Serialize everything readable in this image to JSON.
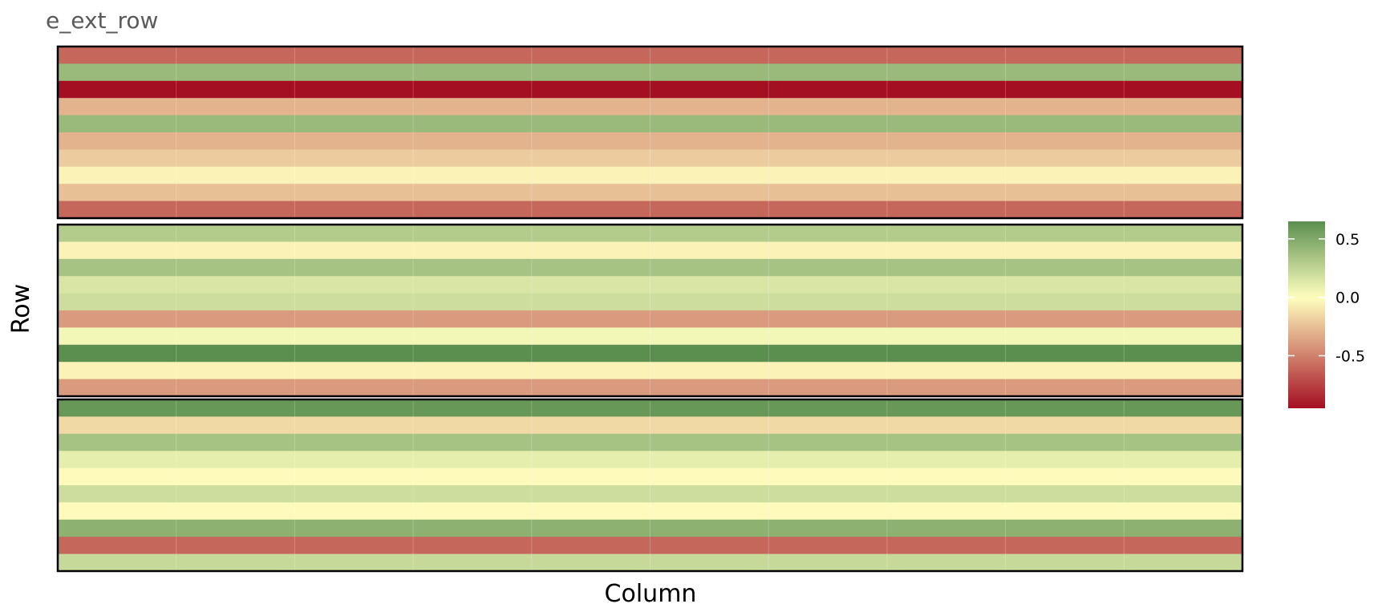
{
  "chart_data": {
    "type": "heatmap",
    "title": "e_ext_row",
    "xlabel": "Column",
    "ylabel": "Row",
    "n_columns": 10,
    "color_scale": {
      "low": "#a50f22",
      "mid": "#ffffbf",
      "high": "#5a8f4f",
      "range": [
        -0.95,
        0.65
      ],
      "ticks": [
        0.5,
        0.0,
        -0.5
      ],
      "tick_labels": [
        "0.5",
        "0.0",
        "-0.5"
      ]
    },
    "panels": [
      {
        "rows": [
          -0.6,
          0.4,
          -0.95,
          -0.3,
          0.4,
          -0.3,
          -0.2,
          -0.05,
          -0.25,
          -0.6
        ]
      },
      {
        "rows": [
          0.3,
          -0.05,
          0.35,
          0.15,
          0.2,
          -0.4,
          0.05,
          0.65,
          -0.05,
          -0.4
        ]
      },
      {
        "rows": [
          0.6,
          -0.15,
          0.35,
          0.1,
          -0.02,
          0.2,
          -0.02,
          0.45,
          -0.6,
          0.22
        ]
      }
    ]
  }
}
